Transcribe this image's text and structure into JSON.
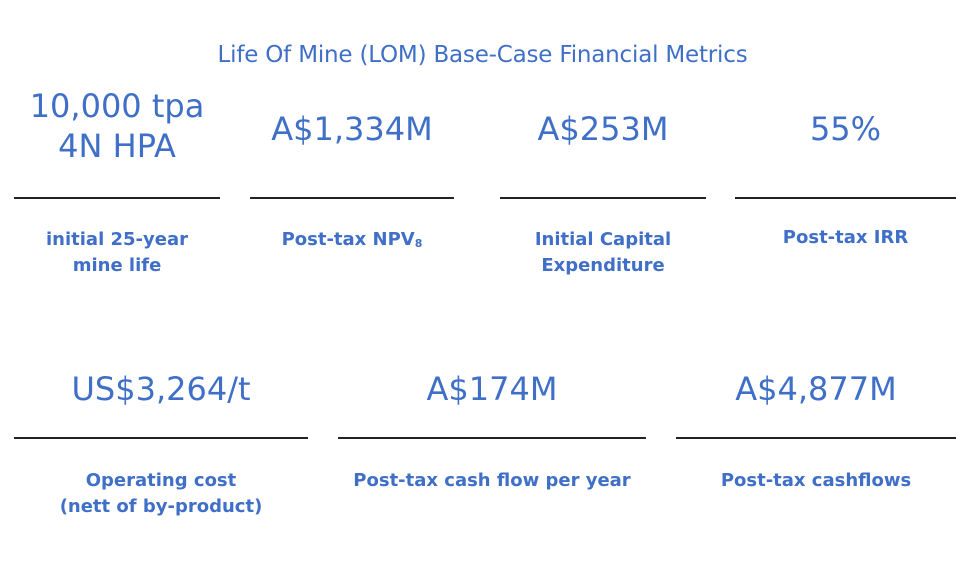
{
  "title": "Life Of Mine (LOM) Base-Case Financial Metrics",
  "accent_color": "#3f6fc7",
  "rule_color": "#222222",
  "metrics_row1": [
    {
      "value_line1": "10,000 tpa",
      "value_line2": "4N HPA",
      "label_line1": "initial 25-year",
      "label_line2": "mine life"
    },
    {
      "value": "A$1,334M",
      "label": "Post-tax NPV",
      "label_subscript": "8"
    },
    {
      "value": "A$253M",
      "label_line1": "Initial Capital",
      "label_line2": "Expenditure"
    },
    {
      "value": "55%",
      "label": "Post-tax IRR"
    }
  ],
  "metrics_row2": [
    {
      "value": "US$3,264/t",
      "label_line1": "Operating cost",
      "label_line2": "(nett of by-product)"
    },
    {
      "value": "A$174M",
      "label": "Post-tax cash flow per year"
    },
    {
      "value": "A$4,877M",
      "label": "Post-tax cashflows"
    }
  ]
}
